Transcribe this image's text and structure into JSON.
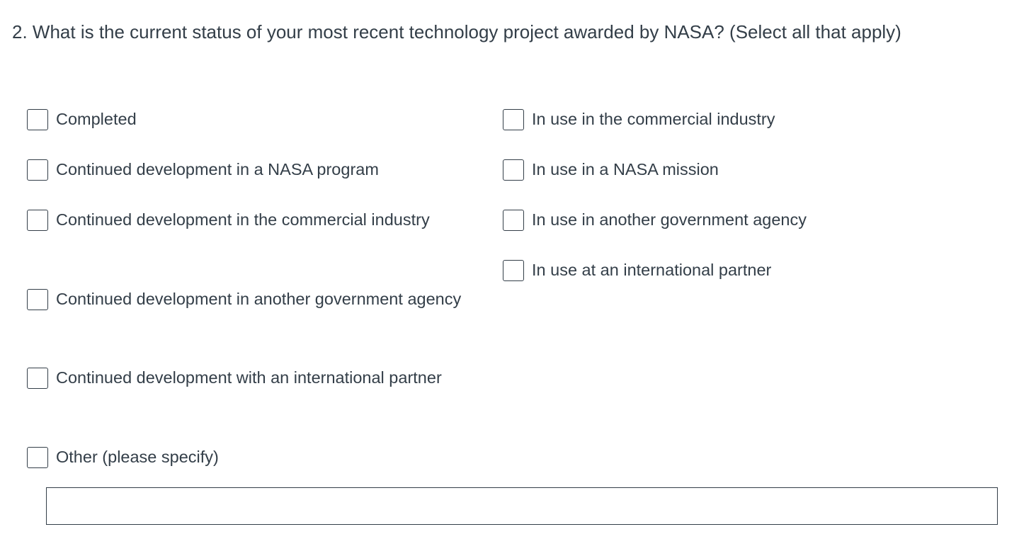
{
  "question": {
    "title": "2. What is the current status of your most recent technology project awarded by NASA? (Select all that apply)"
  },
  "options_left": [
    {
      "label": "Completed",
      "checked": false
    },
    {
      "label": "Continued development in a NASA program",
      "checked": false
    },
    {
      "label": "Continued development in the commercial industry",
      "checked": false
    },
    {
      "label": "Continued development in another government agency",
      "checked": false
    },
    {
      "label": "Continued development with an international partner",
      "checked": false
    },
    {
      "label": "Other (please specify)",
      "checked": false
    }
  ],
  "options_right": [
    {
      "label": "In use in the commercial industry",
      "checked": false
    },
    {
      "label": "In use in a NASA mission",
      "checked": false
    },
    {
      "label": "In use in another government agency",
      "checked": false
    },
    {
      "label": "In use at an international partner",
      "checked": false
    }
  ],
  "other_input": {
    "value": ""
  },
  "colors": {
    "text": "#333e48",
    "border": "#333e48"
  }
}
